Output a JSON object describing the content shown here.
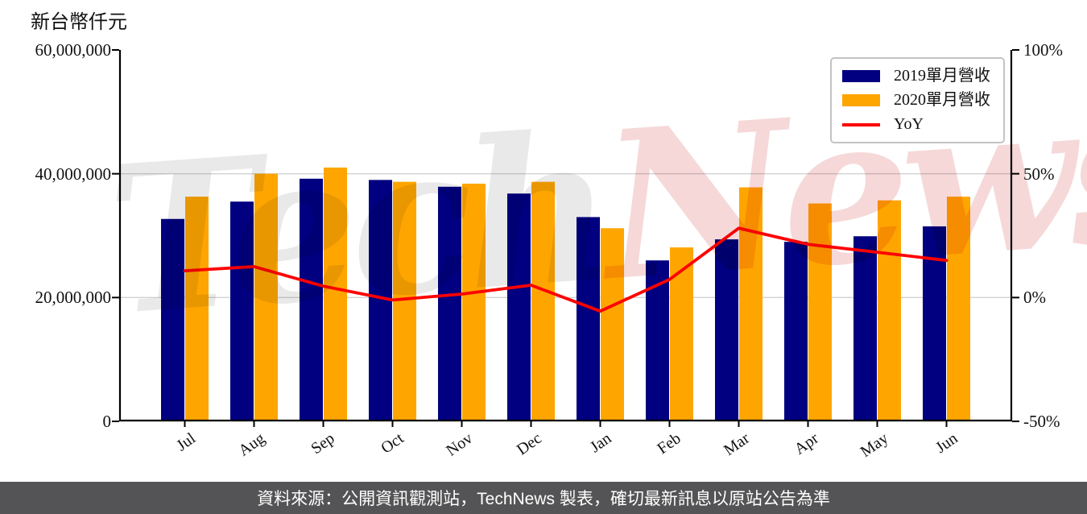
{
  "page": {
    "background": "#ffffff"
  },
  "chart_data": {
    "type": "bar",
    "unit_label": "新台幣仟元",
    "categories": [
      "Jul",
      "Aug",
      "Sep",
      "Oct",
      "Nov",
      "Dec",
      "Jan",
      "Feb",
      "Mar",
      "Apr",
      "May",
      "Jun"
    ],
    "series": [
      {
        "name": "2019單月營收",
        "type": "bar",
        "color": "#000080",
        "values": [
          32700000,
          35500000,
          39200000,
          39000000,
          37900000,
          36800000,
          33000000,
          26000000,
          29400000,
          29000000,
          29900000,
          31500000
        ]
      },
      {
        "name": "2020單月營收",
        "type": "bar",
        "color": "#FFA500",
        "values": [
          36300000,
          40000000,
          41000000,
          38700000,
          38400000,
          38700000,
          31200000,
          28100000,
          37800000,
          35200000,
          35700000,
          36300000
        ]
      },
      {
        "name": "YoY",
        "type": "line",
        "axis": "right",
        "color": "#FF0000",
        "values_percent": [
          10.8,
          12.5,
          4.6,
          -1.0,
          1.4,
          5.0,
          -5.5,
          7.3,
          28.0,
          21.5,
          18.3,
          15.0
        ]
      }
    ],
    "left_axis": {
      "min": 0,
      "max": 60000000,
      "tick_values": [
        60000000,
        40000000,
        20000000,
        0
      ],
      "tick_labels": [
        "60,000,000",
        "40,000,000",
        "20,000,000",
        "0"
      ]
    },
    "right_axis": {
      "min": -50,
      "max": 100,
      "tick_values": [
        100,
        50,
        0,
        -50
      ],
      "tick_labels": [
        "100%",
        "50%",
        "0%",
        "-50%"
      ]
    },
    "gridline_values": [
      40000000,
      20000000
    ],
    "grid_color": "#d2d2d2",
    "axis_color": "#000000",
    "legend_position": "top-right"
  },
  "watermark": {
    "text_part1": "Tech",
    "text_part2": "News",
    "color_part1": "#e9e9e9",
    "color_part2": "#f6d8d8"
  },
  "footer": {
    "text": "資料來源：公開資訊觀測站，TechNews 製表，確切最新訊息以原站公告為準",
    "background": "#545456",
    "text_color": "#ffffff"
  }
}
